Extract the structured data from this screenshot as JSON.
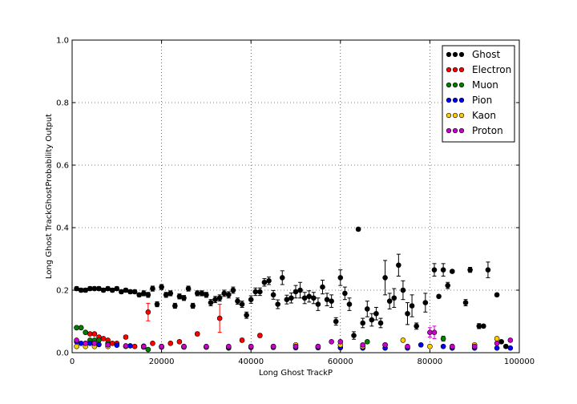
{
  "chart_data": {
    "type": "scatter",
    "title": "",
    "xlabel": "Long Ghost TrackP",
    "ylabel": "Long Ghost TrackGhostProbability Output",
    "xlim": [
      0,
      100000
    ],
    "ylim": [
      0,
      1.0
    ],
    "x_ticks": [
      0,
      20000,
      40000,
      60000,
      80000,
      100000
    ],
    "x_tick_labels": [
      "0",
      "20000",
      "40000",
      "60000",
      "80000",
      "100000"
    ],
    "y_ticks": [
      0.0,
      0.2,
      0.4,
      0.6,
      0.8,
      1.0
    ],
    "y_tick_labels": [
      "0.0",
      "0.2",
      "0.4",
      "0.6",
      "0.8",
      "1.0"
    ],
    "grid": true,
    "legend_position": "top-right",
    "series": [
      {
        "name": "Ghost",
        "color": "#000000",
        "x": [
          1000,
          2000,
          3000,
          4000,
          5000,
          6000,
          7000,
          8000,
          9000,
          10000,
          11000,
          12000,
          13000,
          14000,
          15000,
          16000,
          17000,
          18000,
          19000,
          20000,
          21000,
          22000,
          23000,
          24000,
          25000,
          26000,
          27000,
          28000,
          29000,
          30000,
          31000,
          32000,
          33000,
          34000,
          35000,
          36000,
          37000,
          38000,
          39000,
          40000,
          41000,
          42000,
          43000,
          44000,
          45000,
          46000,
          47000,
          48000,
          49000,
          50000,
          51000,
          52000,
          53000,
          54000,
          55000,
          56000,
          57000,
          58000,
          59000,
          60000,
          61000,
          62000,
          63000,
          64000,
          65000,
          66000,
          67000,
          68000,
          69000,
          70000,
          71000,
          72000,
          73000,
          74000,
          75000,
          76000,
          77000,
          79000,
          81000,
          82000,
          83000,
          84000,
          85000,
          88000,
          89000,
          91000,
          92000,
          93000,
          95000,
          96000,
          97000
        ],
        "y": [
          0.205,
          0.2,
          0.2,
          0.205,
          0.205,
          0.205,
          0.2,
          0.205,
          0.2,
          0.205,
          0.195,
          0.2,
          0.195,
          0.195,
          0.185,
          0.19,
          0.185,
          0.205,
          0.155,
          0.21,
          0.185,
          0.19,
          0.15,
          0.18,
          0.175,
          0.205,
          0.15,
          0.19,
          0.19,
          0.185,
          0.16,
          0.17,
          0.175,
          0.19,
          0.185,
          0.2,
          0.165,
          0.155,
          0.12,
          0.17,
          0.195,
          0.195,
          0.225,
          0.23,
          0.185,
          0.155,
          0.24,
          0.17,
          0.175,
          0.195,
          0.2,
          0.175,
          0.18,
          0.175,
          0.155,
          0.21,
          0.17,
          0.165,
          0.1,
          0.24,
          0.19,
          0.155,
          0.055,
          0.395,
          0.095,
          0.14,
          0.105,
          0.125,
          0.095,
          0.24,
          0.165,
          0.175,
          0.28,
          0.2,
          0.125,
          0.15,
          0.085,
          0.16,
          0.265,
          0.18,
          0.265,
          0.215,
          0.26,
          0.16,
          0.265,
          0.085,
          0.085,
          0.265,
          0.185,
          0.035,
          0.02
        ],
        "yerr": [
          0.006,
          0.006,
          0.006,
          0.006,
          0.006,
          0.006,
          0.006,
          0.006,
          0.006,
          0.006,
          0.006,
          0.006,
          0.006,
          0.006,
          0.006,
          0.008,
          0.008,
          0.008,
          0.008,
          0.008,
          0.008,
          0.008,
          0.008,
          0.008,
          0.008,
          0.008,
          0.008,
          0.008,
          0.008,
          0.008,
          0.01,
          0.01,
          0.01,
          0.01,
          0.01,
          0.01,
          0.01,
          0.01,
          0.01,
          0.012,
          0.012,
          0.012,
          0.012,
          0.012,
          0.014,
          0.014,
          0.022,
          0.014,
          0.016,
          0.02,
          0.025,
          0.018,
          0.018,
          0.018,
          0.02,
          0.022,
          0.02,
          0.02,
          0.012,
          0.025,
          0.02,
          0.02,
          0.012,
          0.005,
          0.015,
          0.025,
          0.02,
          0.02,
          0.015,
          0.055,
          0.025,
          0.03,
          0.035,
          0.03,
          0.035,
          0.035,
          0.01,
          0.03,
          0.02,
          0.005,
          0.02,
          0.01,
          0.005,
          0.01,
          0.008,
          0.008,
          0.005,
          0.025,
          0.005,
          0.005,
          0.005
        ]
      },
      {
        "name": "Electron",
        "color": "#ff0000",
        "x": [
          1000,
          2000,
          3000,
          4000,
          5000,
          6000,
          7000,
          8000,
          9000,
          10000,
          12000,
          14000,
          17000,
          18000,
          22000,
          24000,
          28000,
          33000,
          38000,
          42000
        ],
        "y": [
          0.08,
          0.08,
          0.065,
          0.06,
          0.06,
          0.05,
          0.045,
          0.04,
          0.03,
          0.03,
          0.05,
          0.02,
          0.13,
          0.03,
          0.03,
          0.035,
          0.06,
          0.11,
          0.04,
          0.055
        ],
        "yerr": [
          0.003,
          0.003,
          0.003,
          0.003,
          0.003,
          0.003,
          0.003,
          0.003,
          0.003,
          0.003,
          0.005,
          0.005,
          0.028,
          0.005,
          0.005,
          0.005,
          0.006,
          0.045,
          0.006,
          0.006
        ]
      },
      {
        "name": "Muon",
        "color": "#008000",
        "x": [
          1000,
          2000,
          3000,
          4000,
          5000,
          6000,
          8000,
          17000,
          35000,
          66000,
          83000
        ],
        "y": [
          0.08,
          0.08,
          0.065,
          0.04,
          0.04,
          0.04,
          0.03,
          0.01,
          0.015,
          0.035,
          0.045
        ],
        "yerr": [
          0.003,
          0.003,
          0.003,
          0.003,
          0.003,
          0.003,
          0.003,
          0.003,
          0.003,
          0.005,
          0.008
        ]
      },
      {
        "name": "Pion",
        "color": "#0000ff",
        "x": [
          1000,
          2000,
          3000,
          4000,
          5000,
          6000,
          8000,
          10000,
          13000,
          16000,
          20000,
          25000,
          30000,
          35000,
          40000,
          45000,
          50000,
          55000,
          60000,
          65000,
          70000,
          75000,
          78000,
          83000,
          85000,
          90000,
          95000,
          98000
        ],
        "y": [
          0.035,
          0.03,
          0.03,
          0.03,
          0.028,
          0.026,
          0.025,
          0.024,
          0.022,
          0.021,
          0.02,
          0.02,
          0.018,
          0.018,
          0.017,
          0.017,
          0.016,
          0.016,
          0.016,
          0.015,
          0.015,
          0.015,
          0.025,
          0.02,
          0.015,
          0.015,
          0.015,
          0.015
        ],
        "yerr": [
          0.002,
          0.002,
          0.002,
          0.002,
          0.002,
          0.002,
          0.002,
          0.002,
          0.002,
          0.002,
          0.002,
          0.002,
          0.002,
          0.002,
          0.002,
          0.002,
          0.002,
          0.002,
          0.002,
          0.002,
          0.002,
          0.002,
          0.004,
          0.004,
          0.002,
          0.002,
          0.002,
          0.002
        ]
      },
      {
        "name": "Kaon",
        "color": "#ffcc00",
        "x": [
          1000,
          3000,
          5000,
          8000,
          12000,
          16000,
          20000,
          25000,
          30000,
          35000,
          40000,
          45000,
          50000,
          55000,
          60000,
          65000,
          70000,
          74000,
          80000,
          85000,
          90000,
          95000
        ],
        "y": [
          0.02,
          0.02,
          0.02,
          0.02,
          0.02,
          0.018,
          0.018,
          0.018,
          0.018,
          0.018,
          0.02,
          0.02,
          0.025,
          0.02,
          0.025,
          0.02,
          0.025,
          0.04,
          0.02,
          0.02,
          0.025,
          0.045
        ],
        "yerr": [
          0.002,
          0.002,
          0.002,
          0.002,
          0.002,
          0.002,
          0.002,
          0.002,
          0.002,
          0.002,
          0.003,
          0.003,
          0.003,
          0.003,
          0.003,
          0.003,
          0.003,
          0.004,
          0.003,
          0.003,
          0.003,
          0.005
        ]
      },
      {
        "name": "Proton",
        "color": "#cc00cc",
        "x": [
          1000,
          3000,
          5000,
          8000,
          12000,
          16000,
          20000,
          25000,
          30000,
          35000,
          40000,
          45000,
          50000,
          55000,
          58000,
          60000,
          65000,
          70000,
          75000,
          80000,
          81000,
          85000,
          90000,
          95000,
          98000
        ],
        "y": [
          0.04,
          0.03,
          0.03,
          0.025,
          0.022,
          0.02,
          0.02,
          0.02,
          0.02,
          0.02,
          0.02,
          0.02,
          0.02,
          0.02,
          0.035,
          0.035,
          0.025,
          0.025,
          0.02,
          0.065,
          0.065,
          0.02,
          0.02,
          0.03,
          0.04
        ],
        "yerr": [
          0.003,
          0.002,
          0.002,
          0.002,
          0.002,
          0.002,
          0.002,
          0.002,
          0.002,
          0.002,
          0.002,
          0.002,
          0.002,
          0.003,
          0.004,
          0.004,
          0.003,
          0.003,
          0.003,
          0.015,
          0.02,
          0.003,
          0.003,
          0.004,
          0.005
        ]
      }
    ]
  }
}
